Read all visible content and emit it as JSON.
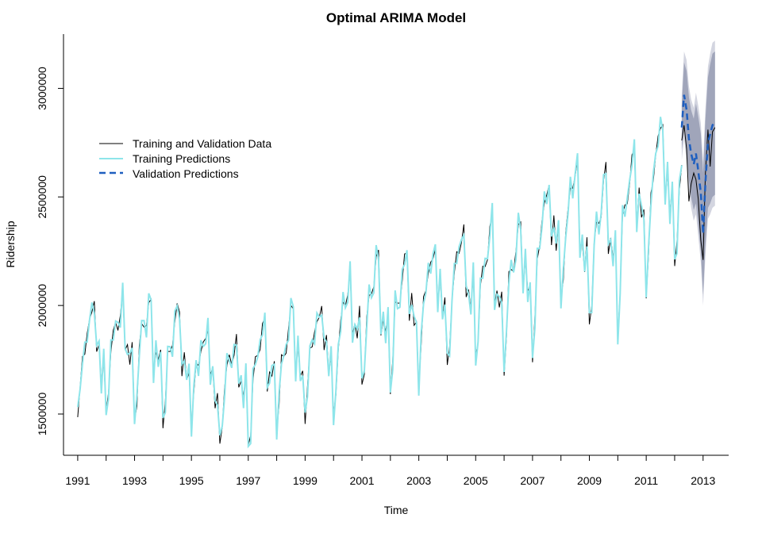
{
  "chart_data": {
    "type": "line",
    "title": "Optimal ARIMA Model",
    "xlabel": "Time",
    "ylabel": "Ridership",
    "xlim": [
      1990.5,
      2013.9
    ],
    "ylim": [
      1310000,
      3250000
    ],
    "x_ticks": [
      1991,
      1992,
      1993,
      1994,
      1995,
      1996,
      1997,
      1998,
      1999,
      2000,
      2001,
      2002,
      2003,
      2004,
      2005,
      2006,
      2007,
      2008,
      2009,
      2010,
      2011,
      2012,
      2013
    ],
    "x_tick_labels": [
      {
        "x": 1991,
        "label": "1991"
      },
      {
        "x": 1993,
        "label": "1993"
      },
      {
        "x": 1995,
        "label": "1995"
      },
      {
        "x": 1997,
        "label": "1997"
      },
      {
        "x": 1999,
        "label": "1999"
      },
      {
        "x": 2001,
        "label": "2001"
      },
      {
        "x": 2003,
        "label": "2003"
      },
      {
        "x": 2005,
        "label": "2005"
      },
      {
        "x": 2007,
        "label": "2007"
      },
      {
        "x": 2009,
        "label": "2009"
      },
      {
        "x": 2011,
        "label": "2011"
      },
      {
        "x": 2013,
        "label": "2013"
      }
    ],
    "y_ticks": [
      {
        "y": 1500000,
        "label": "1500000"
      },
      {
        "y": 2000000,
        "label": "2000000"
      },
      {
        "y": 2500000,
        "label": "2500000"
      },
      {
        "y": 3000000,
        "label": "3000000"
      }
    ],
    "grid": false,
    "legend": {
      "placement": "left",
      "entries": [
        {
          "label": "Training and Validation Data",
          "color": "#000000",
          "style": "solid"
        },
        {
          "label": "Training Predictions",
          "color": "#8ee5ea",
          "style": "solid"
        },
        {
          "label": "Validation Predictions",
          "color": "#1f5fbf",
          "style": "dashed"
        }
      ]
    },
    "monthly_start": 1991.0,
    "seasonal_pattern": [
      0.83,
      0.89,
      1.01,
      1.04,
      1.06,
      1.08,
      1.12,
      1.14,
      0.98,
      1.02,
      0.96,
      1.0
    ],
    "trend_knots": [
      {
        "x": 1991.0,
        "y": 1760000
      },
      {
        "x": 1992.0,
        "y": 1780000
      },
      {
        "x": 1993.0,
        "y": 1800000
      },
      {
        "x": 1994.0,
        "y": 1760000
      },
      {
        "x": 1995.0,
        "y": 1730000
      },
      {
        "x": 1996.0,
        "y": 1620000
      },
      {
        "x": 1997.0,
        "y": 1640000
      },
      {
        "x": 1998.0,
        "y": 1720000
      },
      {
        "x": 1999.0,
        "y": 1760000
      },
      {
        "x": 2000.0,
        "y": 1790000
      },
      {
        "x": 2001.0,
        "y": 1950000
      },
      {
        "x": 2002.0,
        "y": 1940000
      },
      {
        "x": 2003.0,
        "y": 1990000
      },
      {
        "x": 2004.0,
        "y": 2050000
      },
      {
        "x": 2005.0,
        "y": 2090000
      },
      {
        "x": 2006.0,
        "y": 2060000
      },
      {
        "x": 2007.0,
        "y": 2140000
      },
      {
        "x": 2008.0,
        "y": 2400000
      },
      {
        "x": 2009.0,
        "y": 2260000
      },
      {
        "x": 2010.0,
        "y": 2300000
      },
      {
        "x": 2011.0,
        "y": 2490000
      },
      {
        "x": 2012.0,
        "y": 2560000
      },
      {
        "x": 2013.0,
        "y": 2600000
      },
      {
        "x": 2013.5,
        "y": 2650000
      }
    ],
    "validation": {
      "x": [
        2012.25,
        2012.33,
        2012.42,
        2012.5,
        2012.58,
        2012.67,
        2012.75,
        2012.83,
        2012.92,
        2013.0,
        2013.08,
        2013.17,
        2013.25,
        2013.33,
        2013.42
      ],
      "predicted": [
        2820000,
        2970000,
        2900000,
        2770000,
        2700000,
        2650000,
        2700000,
        2620000,
        2520000,
        2330000,
        2560000,
        2750000,
        2790000,
        2830000,
        2850000
      ],
      "lower_95": [
        2720000,
        2820000,
        2720000,
        2580000,
        2500000,
        2440000,
        2470000,
        2370000,
        2250000,
        2050000,
        2270000,
        2450000,
        2470000,
        2500000,
        2510000
      ],
      "upper_95": [
        2920000,
        3120000,
        3080000,
        2960000,
        2900000,
        2860000,
        2930000,
        2870000,
        2790000,
        2610000,
        2850000,
        3050000,
        3110000,
        3160000,
        3170000
      ],
      "actual": [
        2760000,
        2830000,
        2720000,
        2480000,
        2560000,
        2610000,
        2580000,
        2490000,
        2300000,
        2210000,
        2600000,
        2810000,
        2640000,
        2800000,
        2820000
      ]
    },
    "colors": {
      "actual": "#000000",
      "training_pred": "#8ee5ea",
      "validation_pred": "#1f5fbf",
      "band_outer": "#c8cbd8",
      "band_inner": "#9398b0"
    }
  }
}
